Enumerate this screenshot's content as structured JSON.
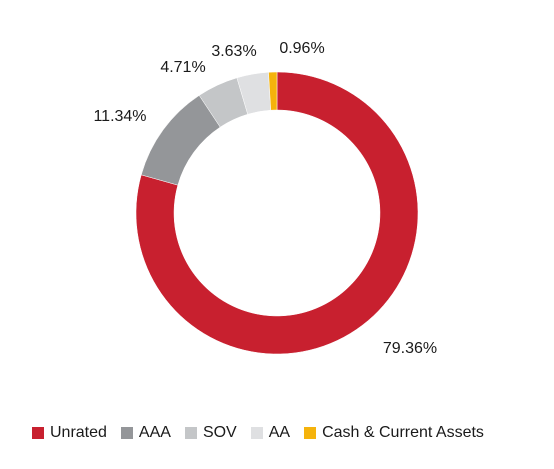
{
  "chart_data": {
    "type": "pie",
    "title": "",
    "donut": true,
    "series": [
      {
        "name": "Unrated",
        "value": 79.36,
        "label": "79.36%",
        "color": "#c8202f"
      },
      {
        "name": "AAA",
        "value": 11.34,
        "label": "11.34%",
        "color": "#949699"
      },
      {
        "name": "SOV",
        "value": 4.71,
        "label": "4.71%",
        "color": "#c4c6c8"
      },
      {
        "name": "AA",
        "value": 3.63,
        "label": "3.63%",
        "color": "#dfe0e2"
      },
      {
        "name": "Cash & Current Assets",
        "value": 0.96,
        "label": "0.96%",
        "color": "#f5b30c"
      }
    ],
    "legend_placement": "bottom"
  }
}
